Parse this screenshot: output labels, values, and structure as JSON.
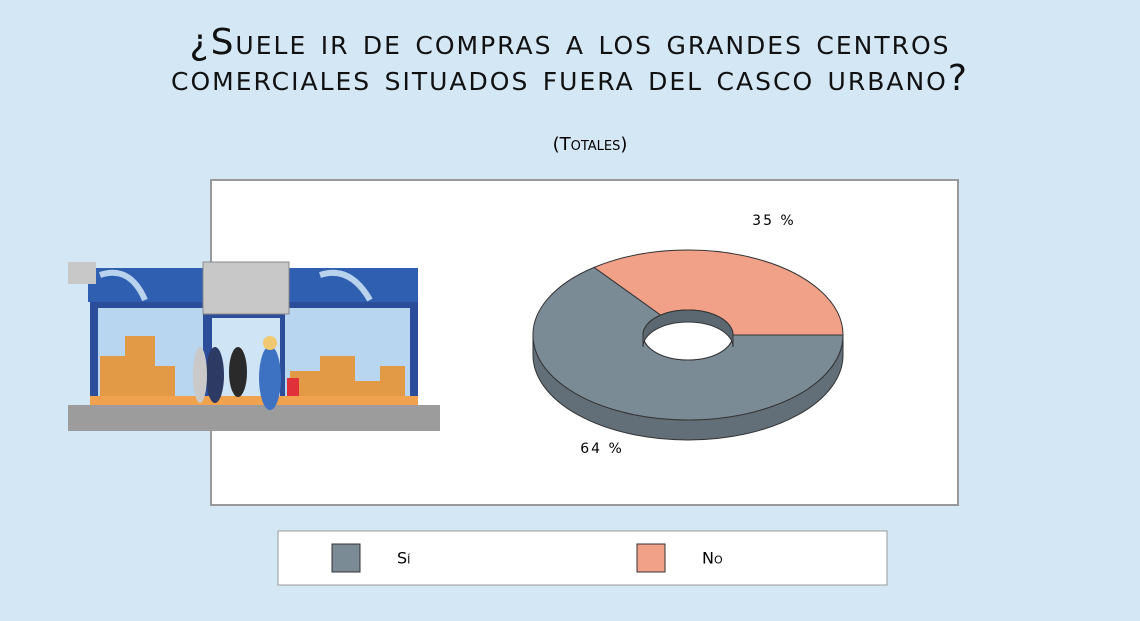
{
  "chart_data": {
    "type": "pie",
    "donut": true,
    "three_d": true,
    "title": [
      "¿Suele ir de compras a los grandes centros",
      "comerciales situados fuera del casco urbano?"
    ],
    "subtitle": "(Totales)",
    "categories": [
      "Sí",
      "No"
    ],
    "values": [
      64,
      35
    ],
    "value_labels": [
      "64 %",
      "35 %"
    ],
    "colors": [
      "#7b8b96",
      "#f2a189"
    ],
    "legend": "bottom"
  }
}
